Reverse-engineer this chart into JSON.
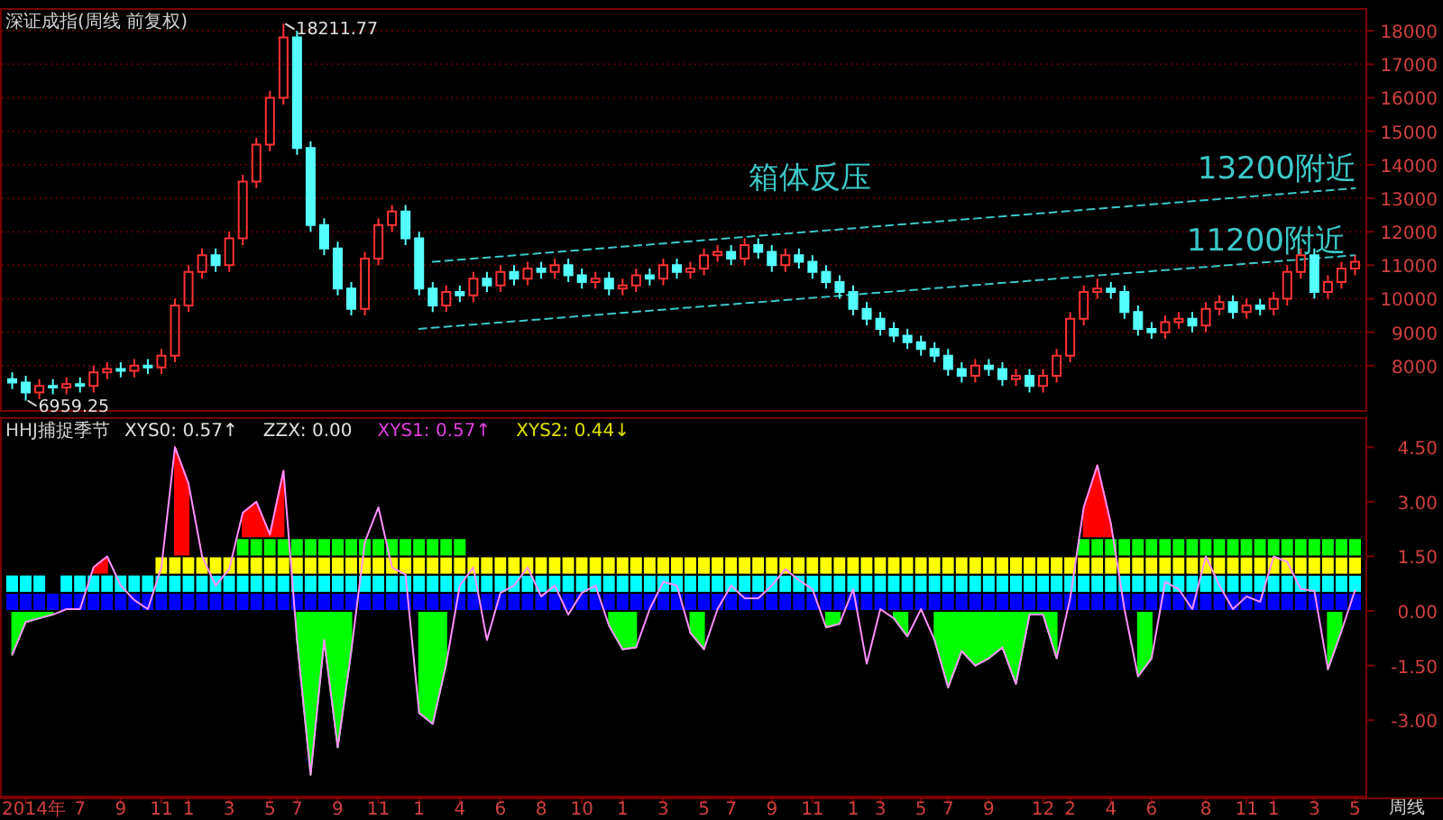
{
  "chart_data": [
    {
      "type": "candlestick",
      "title": "深证成指(周线 前复权)",
      "tick_labels": "y",
      "grid": "y",
      "ylim": [
        6650,
        18650
      ],
      "yticks": [
        8000,
        9000,
        10000,
        11000,
        12000,
        13000,
        14000,
        15000,
        16000,
        17000,
        18000
      ],
      "annotations": [
        "18211.77",
        "6959.25",
        "箱体反压",
        "13200附近",
        "11200附近"
      ],
      "ohlc": [
        [
          7600,
          7800,
          7300,
          7500
        ],
        [
          7500,
          7700,
          6959.25,
          7200
        ],
        [
          7200,
          7600,
          7000,
          7400
        ],
        [
          7400,
          7600,
          7150,
          7350
        ],
        [
          7350,
          7650,
          7150,
          7450
        ],
        [
          7450,
          7650,
          7200,
          7400
        ],
        [
          7400,
          8000,
          7200,
          7800
        ],
        [
          7800,
          8100,
          7600,
          7900
        ],
        [
          7900,
          8100,
          7650,
          7850
        ],
        [
          7850,
          8200,
          7650,
          8000
        ],
        [
          8000,
          8200,
          7750,
          7950
        ],
        [
          7950,
          8500,
          7750,
          8300
        ],
        [
          8300,
          10000,
          8100,
          9800
        ],
        [
          9800,
          11000,
          9600,
          10800
        ],
        [
          10800,
          11500,
          10600,
          11300
        ],
        [
          11300,
          11500,
          10800,
          11000
        ],
        [
          11000,
          12000,
          10800,
          11800
        ],
        [
          11800,
          13700,
          11600,
          13500
        ],
        [
          13500,
          14800,
          13300,
          14600
        ],
        [
          14600,
          16200,
          14400,
          16000
        ],
        [
          16000,
          18211.77,
          15800,
          17800
        ],
        [
          17800,
          18000,
          14300,
          14500
        ],
        [
          14500,
          14700,
          12000,
          12200
        ],
        [
          12200,
          12400,
          11300,
          11500
        ],
        [
          11500,
          11700,
          10100,
          10300
        ],
        [
          10300,
          10500,
          9500,
          9700
        ],
        [
          9700,
          11400,
          9500,
          11200
        ],
        [
          11200,
          12400,
          11000,
          12200
        ],
        [
          12200,
          12800,
          12000,
          12600
        ],
        [
          12600,
          12800,
          11600,
          11800
        ],
        [
          11800,
          12000,
          10100,
          10300
        ],
        [
          10300,
          10500,
          9600,
          9800
        ],
        [
          9800,
          10400,
          9600,
          10200
        ],
        [
          10200,
          10400,
          9900,
          10100
        ],
        [
          10100,
          10800,
          9900,
          10600
        ],
        [
          10600,
          10800,
          10200,
          10400
        ],
        [
          10400,
          11000,
          10200,
          10800
        ],
        [
          10800,
          11000,
          10400,
          10600
        ],
        [
          10600,
          11100,
          10400,
          10900
        ],
        [
          10900,
          11100,
          10600,
          10800
        ],
        [
          10800,
          11200,
          10600,
          11000
        ],
        [
          11000,
          11200,
          10500,
          10700
        ],
        [
          10700,
          10900,
          10300,
          10500
        ],
        [
          10500,
          10800,
          10300,
          10600
        ],
        [
          10600,
          10800,
          10100,
          10300
        ],
        [
          10300,
          10600,
          10100,
          10400
        ],
        [
          10400,
          10900,
          10200,
          10700
        ],
        [
          10700,
          10900,
          10400,
          10600
        ],
        [
          10600,
          11200,
          10400,
          11000
        ],
        [
          11000,
          11200,
          10600,
          10800
        ],
        [
          10800,
          11100,
          10600,
          10900
        ],
        [
          10900,
          11500,
          10700,
          11300
        ],
        [
          11300,
          11600,
          11100,
          11400
        ],
        [
          11400,
          11600,
          11000,
          11200
        ],
        [
          11200,
          11800,
          11000,
          11600
        ],
        [
          11600,
          11800,
          11200,
          11400
        ],
        [
          11400,
          11600,
          10800,
          11000
        ],
        [
          11000,
          11500,
          10800,
          11300
        ],
        [
          11300,
          11500,
          10900,
          11100
        ],
        [
          11100,
          11300,
          10600,
          10800
        ],
        [
          10800,
          11000,
          10300,
          10500
        ],
        [
          10500,
          10700,
          10000,
          10200
        ],
        [
          10200,
          10400,
          9500,
          9700
        ],
        [
          9700,
          9900,
          9200,
          9400
        ],
        [
          9400,
          9600,
          8900,
          9100
        ],
        [
          9100,
          9300,
          8700,
          8900
        ],
        [
          8900,
          9100,
          8500,
          8700
        ],
        [
          8700,
          8900,
          8300,
          8500
        ],
        [
          8500,
          8700,
          8100,
          8300
        ],
        [
          8300,
          8500,
          7700,
          7900
        ],
        [
          7900,
          8100,
          7500,
          7700
        ],
        [
          7700,
          8200,
          7500,
          8000
        ],
        [
          8000,
          8200,
          7700,
          7900
        ],
        [
          7900,
          8100,
          7400,
          7600
        ],
        [
          7600,
          7900,
          7400,
          7700
        ],
        [
          7700,
          7900,
          7200,
          7400
        ],
        [
          7400,
          7900,
          7200,
          7700
        ],
        [
          7700,
          8500,
          7500,
          8300
        ],
        [
          8300,
          9600,
          8100,
          9400
        ],
        [
          9400,
          10400,
          9200,
          10200
        ],
        [
          10200,
          10600,
          10000,
          10300
        ],
        [
          10300,
          10500,
          10000,
          10200
        ],
        [
          10200,
          10400,
          9400,
          9600
        ],
        [
          9600,
          9800,
          8900,
          9100
        ],
        [
          9100,
          9300,
          8800,
          9000
        ],
        [
          9000,
          9500,
          8800,
          9300
        ],
        [
          9300,
          9600,
          9100,
          9400
        ],
        [
          9400,
          9600,
          9000,
          9200
        ],
        [
          9200,
          9900,
          9000,
          9700
        ],
        [
          9700,
          10100,
          9500,
          9900
        ],
        [
          9900,
          10100,
          9400,
          9600
        ],
        [
          9600,
          10000,
          9400,
          9800
        ],
        [
          9800,
          10000,
          9500,
          9700
        ],
        [
          9700,
          10200,
          9500,
          10000
        ],
        [
          10000,
          11000,
          9800,
          10800
        ],
        [
          10800,
          11500,
          10600,
          11300
        ],
        [
          11300,
          11500,
          10000,
          10200
        ],
        [
          10200,
          10700,
          10000,
          10500
        ],
        [
          10500,
          11100,
          10300,
          10900
        ],
        [
          10900,
          11300,
          10700,
          11100
        ]
      ],
      "series": [
        {
          "type": "line",
          "color": "#3cc8c8",
          "line_style": "dashed",
          "values": [
            null,
            null,
            null,
            null,
            null,
            null,
            null,
            null,
            null,
            null,
            null,
            null,
            null,
            null,
            null,
            null,
            null,
            null,
            null,
            null,
            null,
            null,
            null,
            null,
            null,
            null,
            null,
            null,
            null,
            null,
            null,
            11100,
            null,
            null,
            null,
            null,
            null,
            null,
            null,
            null,
            null,
            null,
            null,
            null,
            null,
            null,
            null,
            null,
            null,
            null,
            null,
            null,
            null,
            null,
            null,
            null,
            null,
            null,
            null,
            null,
            null,
            null,
            null,
            null,
            null,
            null,
            null,
            null,
            null,
            null,
            null,
            null,
            null,
            null,
            null,
            null,
            null,
            null,
            null,
            null,
            null,
            null,
            null,
            null,
            null,
            null,
            null,
            null,
            null,
            null,
            null,
            null,
            null,
            null,
            null,
            null,
            null,
            null,
            null,
            13300
          ]
        },
        {
          "type": "line",
          "color": "#3cc8c8",
          "line_style": "dashed",
          "values": [
            null,
            null,
            null,
            null,
            null,
            null,
            null,
            null,
            null,
            null,
            null,
            null,
            null,
            null,
            null,
            null,
            null,
            null,
            null,
            null,
            null,
            null,
            null,
            null,
            null,
            null,
            null,
            null,
            null,
            null,
            9100,
            null,
            null,
            null,
            null,
            null,
            null,
            null,
            null,
            null,
            null,
            null,
            null,
            null,
            null,
            null,
            null,
            null,
            null,
            null,
            null,
            null,
            null,
            null,
            null,
            null,
            null,
            null,
            null,
            null,
            null,
            null,
            null,
            null,
            null,
            null,
            null,
            null,
            null,
            null,
            null,
            null,
            null,
            null,
            null,
            null,
            null,
            null,
            null,
            null,
            null,
            null,
            null,
            null,
            null,
            null,
            null,
            null,
            null,
            null,
            null,
            null,
            null,
            null,
            null,
            null,
            null,
            null,
            null,
            11300
          ]
        }
      ]
    },
    {
      "type": "bar",
      "title": "HHJ捕捉季节",
      "xlabel": "周线",
      "grid": false,
      "categories": [
        null,
        "2014年",
        null,
        null,
        null,
        "7",
        null,
        null,
        "9",
        null,
        null,
        "11",
        null,
        "1",
        null,
        null,
        "3",
        null,
        null,
        "5",
        null,
        "7",
        null,
        null,
        "9",
        null,
        null,
        "11",
        null,
        null,
        "1",
        null,
        null,
        "4",
        null,
        null,
        "6",
        null,
        null,
        "8",
        null,
        null,
        "10",
        null,
        null,
        "1",
        null,
        null,
        "3",
        null,
        null,
        "5",
        null,
        "7",
        null,
        null,
        "9",
        null,
        null,
        "11",
        null,
        null,
        "1",
        null,
        "3",
        null,
        null,
        "5",
        null,
        "7",
        null,
        null,
        "9",
        null,
        null,
        null,
        "12",
        null,
        "2",
        null,
        null,
        "4",
        null,
        null,
        "6",
        null,
        null,
        null,
        "8",
        null,
        null,
        "11",
        null,
        "1",
        null,
        null,
        "3",
        null,
        null,
        "5"
      ],
      "ylim": [
        -5.1,
        5.3
      ],
      "yticks": [
        {
          "value": 4.5,
          "label": "4.50"
        },
        {
          "value": 3,
          "label": "3.00"
        },
        {
          "value": 1.5,
          "label": "1.50"
        },
        {
          "value": 0,
          "label": "0.00"
        },
        {
          "value": -1.5,
          "label": "-1.50"
        },
        {
          "value": -3,
          "label": "-3.00"
        }
      ],
      "annotations": [
        "XYS0: 0.57↑",
        "ZZX: 0.00",
        "XYS1: 0.57↑",
        "XYS2: 0.44↓"
      ],
      "series": [
        {
          "type": "bar",
          "color": "#0000ff",
          "base": [
            0,
            0,
            0,
            0,
            0,
            0,
            0,
            0,
            0,
            0,
            0,
            0,
            0,
            0,
            0,
            0,
            0,
            0,
            0,
            0,
            0,
            0,
            0,
            0,
            0,
            0,
            0,
            0,
            0,
            0,
            0,
            0,
            0,
            0,
            0,
            0,
            0,
            0,
            0,
            0,
            0,
            0,
            0,
            0,
            0,
            0,
            0,
            0,
            0,
            0,
            0,
            0,
            0,
            0,
            0,
            0,
            0,
            0,
            0,
            0,
            0,
            0,
            0,
            0,
            0,
            0,
            0,
            0,
            0,
            0,
            0,
            0,
            0,
            0,
            0,
            0,
            0,
            0,
            0,
            0,
            0,
            0,
            0,
            0,
            0,
            0,
            0,
            0,
            0,
            0,
            0,
            0,
            0,
            0,
            0,
            0,
            0,
            0,
            0,
            0
          ],
          "values": [
            0.5,
            0.5,
            0.5,
            0.5,
            0.5,
            0.5,
            0.5,
            0.5,
            0.5,
            0.5,
            0.5,
            0.5,
            0.5,
            0.5,
            0.5,
            0.5,
            0.5,
            0.5,
            0.5,
            0.5,
            0.5,
            0.5,
            0.5,
            0.5,
            0.5,
            0.5,
            0.5,
            0.5,
            0.5,
            0.5,
            0.5,
            0.5,
            0.5,
            0.5,
            0.5,
            0.5,
            0.5,
            0.5,
            0.5,
            0.5,
            0.5,
            0.5,
            0.5,
            0.5,
            0.5,
            0.5,
            0.5,
            0.5,
            0.5,
            0.5,
            0.5,
            0.5,
            0.5,
            0.5,
            0.5,
            0.5,
            0.5,
            0.5,
            0.5,
            0.5,
            0.5,
            0.5,
            0.5,
            0.5,
            0.5,
            0.5,
            0.5,
            0.5,
            0.5,
            0.5,
            0.5,
            0.5,
            0.5,
            0.5,
            0.5,
            0.5,
            0.5,
            0.5,
            0.5,
            0.5,
            0.5,
            0.5,
            0.5,
            0.5,
            0.5,
            0.5,
            0.5,
            0.5,
            0.5,
            0.5,
            0.5,
            0.5,
            0.5,
            0.5,
            0.5,
            0.5,
            0.5,
            0.5,
            0.5,
            0.5
          ]
        },
        {
          "type": "bar",
          "color": "#00ffff",
          "base": [
            0.5,
            0.5,
            0.5,
            null,
            0.5,
            0.5,
            0.5,
            0.5,
            0.5,
            0.5,
            0.5,
            0.5,
            0.5,
            0.5,
            0.5,
            0.5,
            0.5,
            0.5,
            0.5,
            0.5,
            0.5,
            0.5,
            0.5,
            0.5,
            0.5,
            0.5,
            0.5,
            0.5,
            0.5,
            0.5,
            0.5,
            0.5,
            0.5,
            0.5,
            0.5,
            0.5,
            0.5,
            0.5,
            0.5,
            0.5,
            0.5,
            0.5,
            0.5,
            0.5,
            0.5,
            0.5,
            0.5,
            0.5,
            0.5,
            0.5,
            0.5,
            0.5,
            0.5,
            0.5,
            0.5,
            0.5,
            0.5,
            0.5,
            0.5,
            0.5,
            0.5,
            0.5,
            0.5,
            0.5,
            0.5,
            0.5,
            0.5,
            0.5,
            0.5,
            0.5,
            0.5,
            0.5,
            0.5,
            0.5,
            0.5,
            0.5,
            0.5,
            0.5,
            0.5,
            0.5,
            0.5,
            0.5,
            0.5,
            0.5,
            0.5,
            0.5,
            0.5,
            0.5,
            0.5,
            0.5,
            0.5,
            0.5,
            0.5,
            0.5,
            0.5,
            0.5,
            0.5,
            0.5,
            0.5,
            0.5
          ],
          "values": [
            0.5,
            0.5,
            0.5,
            null,
            0.5,
            0.5,
            0.5,
            0.5,
            0.5,
            0.5,
            0.5,
            0.5,
            0.5,
            0.5,
            0.5,
            0.5,
            0.5,
            0.5,
            0.5,
            0.5,
            0.5,
            0.5,
            0.5,
            0.5,
            0.5,
            0.5,
            0.5,
            0.5,
            0.5,
            0.5,
            0.5,
            0.5,
            0.5,
            0.5,
            0.5,
            0.5,
            0.5,
            0.5,
            0.5,
            0.5,
            0.5,
            0.5,
            0.5,
            0.5,
            0.5,
            0.5,
            0.5,
            0.5,
            0.5,
            0.5,
            0.5,
            0.5,
            0.5,
            0.5,
            0.5,
            0.5,
            0.5,
            0.5,
            0.5,
            0.5,
            0.5,
            0.5,
            0.5,
            0.5,
            0.5,
            0.5,
            0.5,
            0.5,
            0.5,
            0.5,
            0.5,
            0.5,
            0.5,
            0.5,
            0.5,
            0.5,
            0.5,
            0.5,
            0.5,
            0.5,
            0.5,
            0.5,
            0.5,
            0.5,
            0.5,
            0.5,
            0.5,
            0.5,
            0.5,
            0.5,
            0.5,
            0.5,
            0.5,
            0.5,
            0.5,
            0.5,
            0.5,
            0.5,
            0.5,
            0.5
          ]
        },
        {
          "type": "bar",
          "color": "#ffff00",
          "base": [
            null,
            null,
            null,
            null,
            null,
            null,
            null,
            null,
            null,
            null,
            null,
            1,
            1,
            1,
            1,
            1,
            1,
            1,
            1,
            1,
            1,
            1,
            1,
            1,
            1,
            1,
            1,
            1,
            1,
            1,
            1,
            1,
            1,
            1,
            1,
            1,
            1,
            1,
            1,
            1,
            1,
            1,
            1,
            1,
            1,
            1,
            1,
            1,
            1,
            1,
            1,
            1,
            1,
            1,
            1,
            1,
            1,
            1,
            1,
            1,
            1,
            1,
            1,
            1,
            1,
            1,
            1,
            1,
            1,
            1,
            1,
            1,
            1,
            1,
            1,
            1,
            1,
            1,
            1,
            1,
            1,
            1,
            1,
            1,
            1,
            1,
            1,
            1,
            1,
            1,
            1,
            1,
            1,
            1,
            1,
            1,
            1,
            1,
            1,
            1
          ],
          "values": [
            null,
            null,
            null,
            null,
            null,
            null,
            null,
            null,
            null,
            null,
            null,
            0.5,
            0.5,
            0.5,
            0.5,
            0.5,
            0.5,
            0.5,
            0.5,
            0.5,
            0.5,
            0.5,
            0.5,
            0.5,
            0.5,
            0.5,
            0.5,
            0.5,
            0.5,
            0.5,
            0.5,
            0.5,
            0.5,
            0.5,
            0.5,
            0.5,
            0.5,
            0.5,
            0.5,
            0.5,
            0.5,
            0.5,
            0.5,
            0.5,
            0.5,
            0.5,
            0.5,
            0.5,
            0.5,
            0.5,
            0.5,
            0.5,
            0.5,
            0.5,
            0.5,
            0.5,
            0.5,
            0.5,
            0.5,
            0.5,
            0.5,
            0.5,
            0.5,
            0.5,
            0.5,
            0.5,
            0.5,
            0.5,
            0.5,
            0.5,
            0.5,
            0.5,
            0.5,
            0.5,
            0.5,
            0.5,
            0.5,
            0.5,
            0.5,
            0.5,
            0.5,
            0.5,
            0.5,
            0.5,
            0.5,
            0.5,
            0.5,
            0.5,
            0.5,
            0.5,
            0.5,
            0.5,
            0.5,
            0.5,
            0.5,
            0.5,
            0.5,
            0.5,
            0.5,
            0.5
          ]
        },
        {
          "type": "bar",
          "color": "#00ff00",
          "base": [
            null,
            null,
            null,
            null,
            null,
            null,
            null,
            null,
            null,
            null,
            null,
            null,
            null,
            null,
            null,
            null,
            null,
            1.5,
            1.5,
            1.5,
            1.5,
            1.5,
            1.5,
            1.5,
            1.5,
            1.5,
            1.5,
            1.5,
            1.5,
            1.5,
            1.5,
            1.5,
            1.5,
            1.5,
            null,
            null,
            null,
            null,
            null,
            null,
            null,
            null,
            null,
            null,
            null,
            null,
            null,
            null,
            null,
            null,
            null,
            null,
            null,
            null,
            null,
            null,
            null,
            null,
            null,
            null,
            null,
            null,
            null,
            null,
            null,
            null,
            null,
            null,
            null,
            null,
            null,
            null,
            null,
            null,
            null,
            null,
            null,
            null,
            null,
            1.5,
            1.5,
            1.5,
            1.5,
            1.5,
            1.5,
            1.5,
            1.5,
            1.5,
            1.5,
            1.5,
            1.5,
            1.5,
            1.5,
            1.5,
            1.5,
            1.5,
            1.5,
            1.5,
            1.5,
            1.5
          ],
          "values": [
            null,
            null,
            null,
            null,
            null,
            null,
            null,
            null,
            null,
            null,
            null,
            null,
            null,
            null,
            null,
            null,
            null,
            0.5,
            0.5,
            0.5,
            0.5,
            0.5,
            0.5,
            0.5,
            0.5,
            0.5,
            0.5,
            0.5,
            0.5,
            0.5,
            0.5,
            0.5,
            0.5,
            0.5,
            null,
            null,
            null,
            null,
            null,
            null,
            null,
            null,
            null,
            null,
            null,
            null,
            null,
            null,
            null,
            null,
            null,
            null,
            null,
            null,
            null,
            null,
            null,
            null,
            null,
            null,
            null,
            null,
            null,
            null,
            null,
            null,
            null,
            null,
            null,
            null,
            null,
            null,
            null,
            null,
            null,
            null,
            null,
            null,
            null,
            0.5,
            0.5,
            0.5,
            0.5,
            0.5,
            0.5,
            0.5,
            0.5,
            0.5,
            0.5,
            0.5,
            0.5,
            0.5,
            0.5,
            0.5,
            0.5,
            0.5,
            0.5,
            0.5,
            0.5,
            0.5
          ]
        },
        {
          "type": "area",
          "color": "#ff0000",
          "values": [
            null,
            null,
            null,
            null,
            null,
            null,
            1.2,
            1.5,
            null,
            null,
            null,
            null,
            4.5,
            3.5,
            null,
            null,
            null,
            2.7,
            3.0,
            2.1,
            3.85,
            null,
            null,
            null,
            null,
            null,
            null,
            null,
            null,
            null,
            null,
            null,
            null,
            null,
            null,
            null,
            null,
            null,
            null,
            null,
            null,
            null,
            null,
            null,
            null,
            null,
            null,
            null,
            null,
            null,
            null,
            null,
            null,
            null,
            null,
            null,
            null,
            null,
            null,
            null,
            null,
            null,
            null,
            null,
            null,
            null,
            null,
            null,
            null,
            null,
            null,
            null,
            null,
            null,
            null,
            null,
            null,
            null,
            null,
            2.85,
            4.0,
            2.4,
            null,
            null,
            null,
            null,
            null,
            null,
            null,
            null,
            null,
            null,
            null,
            null,
            null,
            null,
            null,
            null,
            null,
            null
          ]
        },
        {
          "type": "area",
          "color": "#00ff00",
          "values": [
            -1.2,
            -0.3,
            -0.2,
            -0.1,
            null,
            null,
            null,
            null,
            null,
            null,
            null,
            null,
            null,
            null,
            null,
            null,
            null,
            null,
            null,
            null,
            null,
            -0.8,
            -4.5,
            -0.8,
            -3.75,
            -1.1,
            null,
            null,
            null,
            null,
            -2.8,
            -3.1,
            -1.45,
            null,
            null,
            null,
            null,
            null,
            null,
            null,
            null,
            null,
            null,
            null,
            -0.4,
            -1.05,
            -1.0,
            null,
            null,
            null,
            -0.6,
            -1.05,
            null,
            null,
            null,
            null,
            null,
            null,
            null,
            null,
            -0.45,
            -0.35,
            null,
            null,
            null,
            -0.2,
            -0.7,
            null,
            -0.8,
            -2.1,
            -1.1,
            -1.5,
            -1.3,
            -1.0,
            -2.0,
            -0.1,
            -0.1,
            -1.3,
            null,
            null,
            null,
            null,
            null,
            -1.8,
            -1.3,
            null,
            null,
            null,
            null,
            null,
            null,
            null,
            null,
            null,
            null,
            null,
            null,
            -1.6,
            -0.55,
            null
          ]
        },
        {
          "type": "line",
          "color": "#ff90ff",
          "values": [
            -1.2,
            -0.3,
            -0.2,
            -0.1,
            0.05,
            0.05,
            1.2,
            1.5,
            0.7,
            0.3,
            0.05,
            1.2,
            4.5,
            3.5,
            1.5,
            0.7,
            1.15,
            2.7,
            3.0,
            2.1,
            3.85,
            -0.8,
            -4.5,
            -0.8,
            -3.75,
            -1.1,
            1.9,
            2.85,
            1.2,
            1.0,
            -2.8,
            -3.1,
            -1.45,
            0.7,
            1.2,
            -0.8,
            0.5,
            0.7,
            1.2,
            0.4,
            0.7,
            -0.1,
            0.5,
            0.7,
            -0.4,
            -1.05,
            -1.0,
            0.05,
            0.8,
            0.7,
            -0.6,
            -1.05,
            0.05,
            0.7,
            0.35,
            0.35,
            0.7,
            1.15,
            0.85,
            0.6,
            -0.45,
            -0.35,
            0.6,
            -1.45,
            0.05,
            -0.2,
            -0.7,
            0.05,
            -0.8,
            -2.1,
            -1.1,
            -1.5,
            -1.3,
            -1.0,
            -2.0,
            -0.1,
            -0.1,
            -1.3,
            0.35,
            2.85,
            4.0,
            2.4,
            0.05,
            -1.8,
            -1.3,
            0.8,
            0.6,
            0.05,
            1.5,
            0.7,
            0.05,
            0.4,
            0.25,
            1.5,
            1.35,
            0.6,
            0.55,
            -1.6,
            -0.55,
            0.57
          ]
        }
      ]
    }
  ]
}
